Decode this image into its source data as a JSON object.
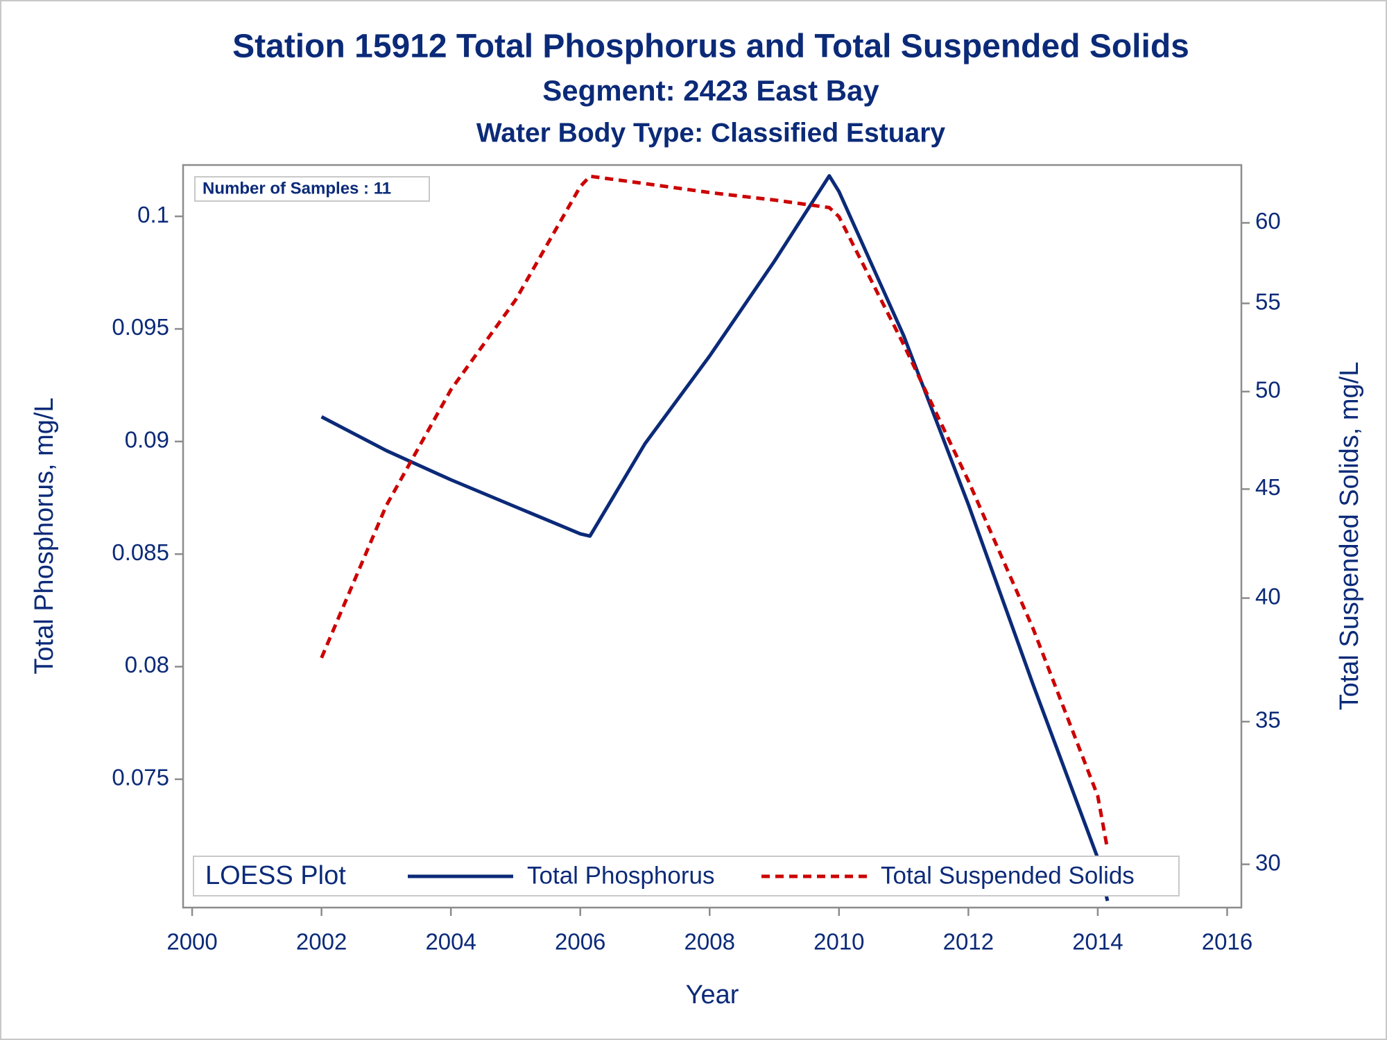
{
  "chart_data": {
    "type": "line",
    "title": "Station 15912  Total Phosphorus and Total Suspended Solids",
    "subtitle": "Segment: 2423  East Bay",
    "subtitle2": "Water Body Type: Classified Estuary",
    "annotation": "Number of Samples : 11",
    "legend_title": "LOESS Plot",
    "xlabel": "Year",
    "ylabel": "Total Phosphorus, mg/L",
    "y2label": "Total Suspended Solids, mg/L",
    "x": [
      2002,
      2003,
      2004,
      2005,
      2006,
      2006.15,
      2007,
      2008,
      2009,
      2009.85,
      2010,
      2011,
      2012,
      2013,
      2014,
      2014.15
    ],
    "series": [
      {
        "name": "Total Phosphorus",
        "color": "#0b2a78",
        "dash": false,
        "values": [
          0.0911,
          0.0896,
          0.0883,
          0.0871,
          0.0859,
          0.0858,
          0.0899,
          0.0938,
          0.098,
          0.1018,
          0.1011,
          0.0947,
          0.0872,
          0.0792,
          0.0715,
          0.0696
        ]
      },
      {
        "name": "Total Suspended Solids",
        "color": "#cc0000",
        "dash": true,
        "axis": "y2",
        "values": [
          37.5,
          44.2,
          50.1,
          55.2,
          62.4,
          63.1,
          62.6,
          62.0,
          61.5,
          61.0,
          60.4,
          52.6,
          45.4,
          38.7,
          32.3,
          30.5
        ]
      }
    ],
    "xlim": [
      1999.86,
      2016.22
    ],
    "xticks": [
      2000,
      2002,
      2004,
      2006,
      2008,
      2010,
      2012,
      2014,
      2016
    ],
    "ylim": [
      0.0693,
      0.10228
    ],
    "yticks": [
      {
        "value": 0.075,
        "label": "0.075"
      },
      {
        "value": 0.08,
        "label": "0.08"
      },
      {
        "value": 0.085,
        "label": "0.085"
      },
      {
        "value": 0.09,
        "label": "0.09"
      },
      {
        "value": 0.095,
        "label": "0.095"
      },
      {
        "value": 0.1,
        "label": "0.1"
      }
    ],
    "y2lim": [
      28.63,
      63.87
    ],
    "y2ticks": [
      30,
      35,
      40,
      45,
      50,
      55,
      60
    ],
    "y2scale": "log",
    "legend_position": "bottom"
  }
}
